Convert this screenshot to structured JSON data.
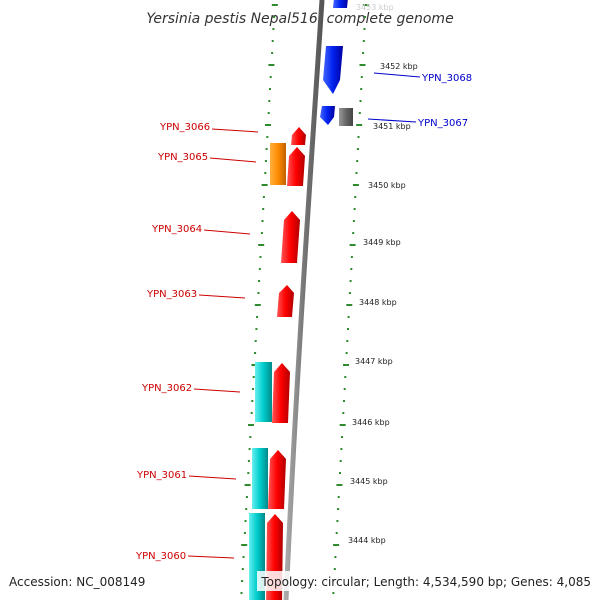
{
  "title": "Yersinia pestis Nepal516, complete genome",
  "footer": {
    "accession": "Accession: NC_008149",
    "summary": "Topology: circular; Length: 4,534,590 bp; Genes: 4,085"
  },
  "colors": {
    "background": "#ffffff",
    "backbone": "#808080",
    "tick": "#2e8b2e",
    "forward_gene": "#ff0000",
    "reverse_gene": "#0000ff",
    "cds_orange": "#ff8c00",
    "cds_cyan": "#00cccc",
    "grey_feature": "#666666",
    "label_forward": "#cc0000",
    "label_reverse": "#0000cc"
  },
  "ruler_labels": [
    "3453 kbp",
    "3452 kbp",
    "3451 kbp",
    "3450 kbp",
    "3449 kbp",
    "3448 kbp",
    "3447 kbp",
    "3446 kbp",
    "3445 kbp",
    "3444 kbp"
  ],
  "gene_labels": [
    {
      "id": "gene-label-ypn-3068",
      "text": "YPN_3068",
      "strand": "reverse"
    },
    {
      "id": "gene-label-ypn-3067",
      "text": "YPN_3067",
      "strand": "reverse"
    },
    {
      "id": "gene-label-ypn-3066",
      "text": "YPN_3066",
      "strand": "forward"
    },
    {
      "id": "gene-label-ypn-3065",
      "text": "YPN_3065",
      "strand": "forward"
    },
    {
      "id": "gene-label-ypn-3064",
      "text": "YPN_3064",
      "strand": "forward"
    },
    {
      "id": "gene-label-ypn-3063",
      "text": "YPN_3063",
      "strand": "forward"
    },
    {
      "id": "gene-label-ypn-3062",
      "text": "YPN_3062",
      "strand": "forward"
    },
    {
      "id": "gene-label-ypn-3061",
      "text": "YPN_3061",
      "strand": "forward"
    },
    {
      "id": "gene-label-ypn-3060",
      "text": "YPN_3060",
      "strand": "forward"
    }
  ]
}
